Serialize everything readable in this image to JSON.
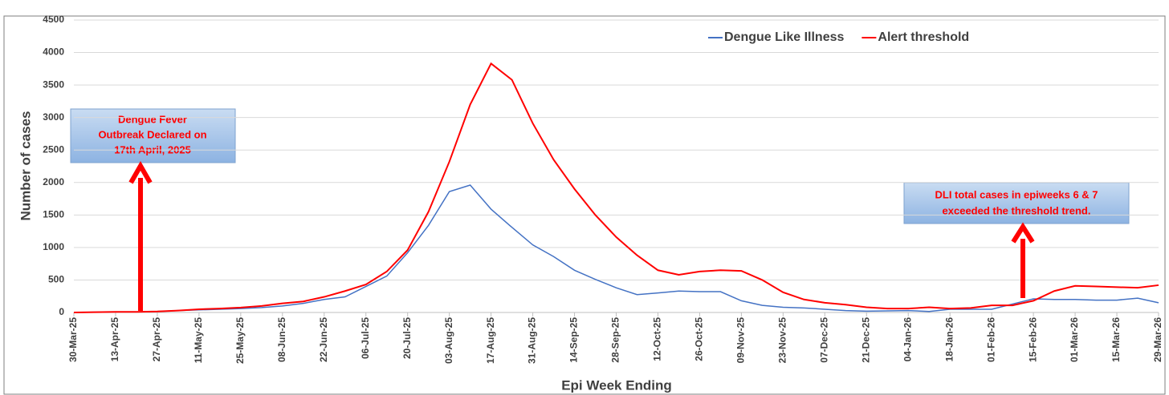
{
  "chart_data": {
    "type": "line",
    "x_label": "Epi Week Ending",
    "y_label": "Number of cases",
    "categories": [
      "30-Mar-25",
      null,
      "13-Apr-25",
      null,
      "27-Apr-25",
      null,
      "11-May-25",
      null,
      "25-May-25",
      null,
      "08-Jun-25",
      null,
      "22-Jun-25",
      null,
      "06-Jul-25",
      null,
      "20-Jul-25",
      null,
      "03-Aug-25",
      null,
      "17-Aug-25",
      null,
      "31-Aug-25",
      null,
      "14-Sep-25",
      null,
      "28-Sep-25",
      null,
      "12-Oct-25",
      null,
      "26-Oct-25",
      null,
      "09-Nov-25",
      null,
      "23-Nov-25",
      null,
      "07-Dec-25",
      null,
      "21-Dec-25",
      null,
      "04-Jan-26",
      null,
      "18-Jan-26",
      null,
      "01-Feb-26",
      null,
      "15-Feb-26",
      null,
      "01-Mar-26",
      null,
      "15-Mar-26",
      null,
      "29-Mar-26"
    ],
    "series": [
      {
        "name": "Dengue Like Illness",
        "color": "#4472c4",
        "values": [
          0,
          5,
          10,
          10,
          15,
          30,
          40,
          50,
          60,
          75,
          100,
          140,
          200,
          240,
          400,
          560,
          920,
          1340,
          1860,
          1960,
          1590,
          1310,
          1040,
          860,
          650,
          510,
          380,
          275,
          300,
          330,
          320,
          320,
          180,
          110,
          80,
          70,
          50,
          30,
          20,
          25,
          30,
          15,
          50,
          50,
          50,
          130,
          210,
          200,
          200,
          190,
          190,
          220,
          150
        ]
      },
      {
        "name": "Alert threshold",
        "color": "#ff0000",
        "values": [
          0,
          5,
          10,
          10,
          15,
          30,
          50,
          60,
          75,
          100,
          140,
          170,
          240,
          330,
          430,
          630,
          960,
          1550,
          2320,
          3200,
          3830,
          3580,
          2910,
          2350,
          1900,
          1500,
          1160,
          880,
          650,
          580,
          630,
          650,
          640,
          500,
          310,
          200,
          150,
          120,
          80,
          60,
          60,
          80,
          60,
          70,
          110,
          110,
          180,
          330,
          410,
          400,
          390,
          380,
          420
        ]
      }
    ],
    "ylim": [
      0,
      4500
    ],
    "yticks": [
      0,
      500,
      1000,
      1500,
      2000,
      2500,
      3000,
      3500,
      4000,
      4500
    ],
    "grid": true,
    "annotations": [
      {
        "lines": [
          "Dengue Fever",
          "Outbreak Declared on",
          "17th April, 2025"
        ]
      },
      {
        "lines": [
          "DLI total cases in epiweeks 6 & 7",
          "exceeded the threshold trend."
        ]
      }
    ]
  }
}
